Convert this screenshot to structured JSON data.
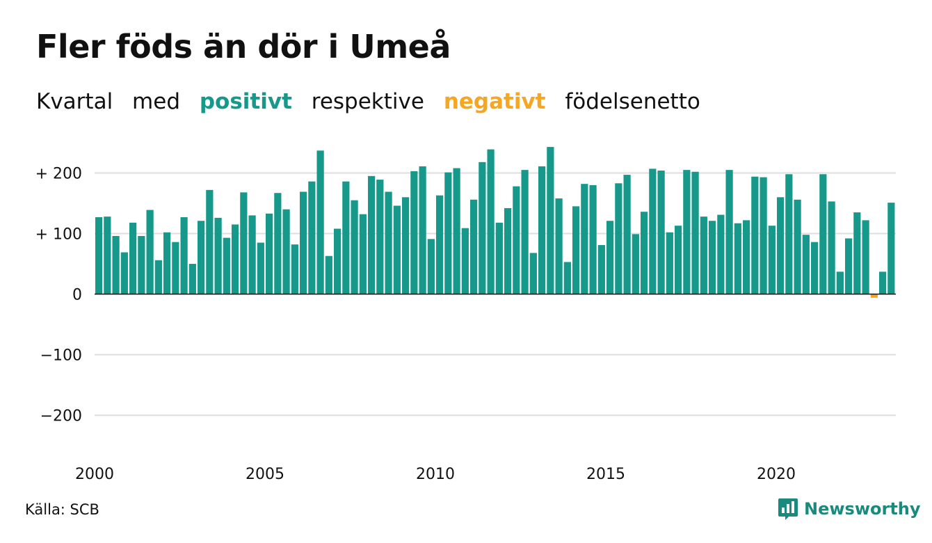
{
  "title": "Fler föds än dör i Umeå",
  "subtitle": {
    "part1": "Kvartal",
    "part2": "med",
    "positive": "positivt",
    "part3": "respektive",
    "negative": "negativt",
    "part4": "födelsenetto"
  },
  "colors": {
    "positive": "#16998a",
    "negative": "#f5a623",
    "brand": "#1a8a7c",
    "gridline": "#dddddd",
    "zero_line": "#111111"
  },
  "source": "Källa: SCB",
  "brand": {
    "name": "Newsworthy",
    "icon": "bar-chart-speech-icon"
  },
  "chart_data": {
    "type": "bar",
    "title": "Fler föds än dör i Umeå",
    "subtitle": "Kvartal med positivt respektive negativt födelsenetto",
    "xlabel": "",
    "ylabel": "",
    "ylim": [
      -260,
      250
    ],
    "yticks": [
      {
        "value": 200,
        "label": "+ 200"
      },
      {
        "value": 100,
        "label": "+ 100"
      },
      {
        "value": 0,
        "label": "0"
      },
      {
        "value": -100,
        "label": "−100"
      },
      {
        "value": -200,
        "label": "−200"
      }
    ],
    "xticks": [
      "2000",
      "2005",
      "2010",
      "2015",
      "2020"
    ],
    "grid": true,
    "legend": "none",
    "start_year": 2000,
    "values": [
      127,
      128,
      96,
      69,
      118,
      96,
      139,
      56,
      102,
      86,
      127,
      50,
      121,
      172,
      126,
      93,
      115,
      168,
      130,
      85,
      133,
      167,
      140,
      82,
      169,
      186,
      237,
      63,
      108,
      186,
      155,
      132,
      195,
      189,
      169,
      146,
      160,
      203,
      211,
      91,
      163,
      201,
      208,
      109,
      156,
      218,
      239,
      118,
      142,
      178,
      205,
      68,
      211,
      243,
      158,
      53,
      145,
      182,
      180,
      81,
      121,
      183,
      197,
      99,
      136,
      207,
      204,
      102,
      113,
      205,
      202,
      128,
      121,
      131,
      205,
      117,
      122,
      194,
      193,
      113,
      160,
      198,
      156,
      98,
      86,
      198,
      153,
      37,
      92,
      135,
      122,
      -6,
      37,
      151
    ]
  }
}
